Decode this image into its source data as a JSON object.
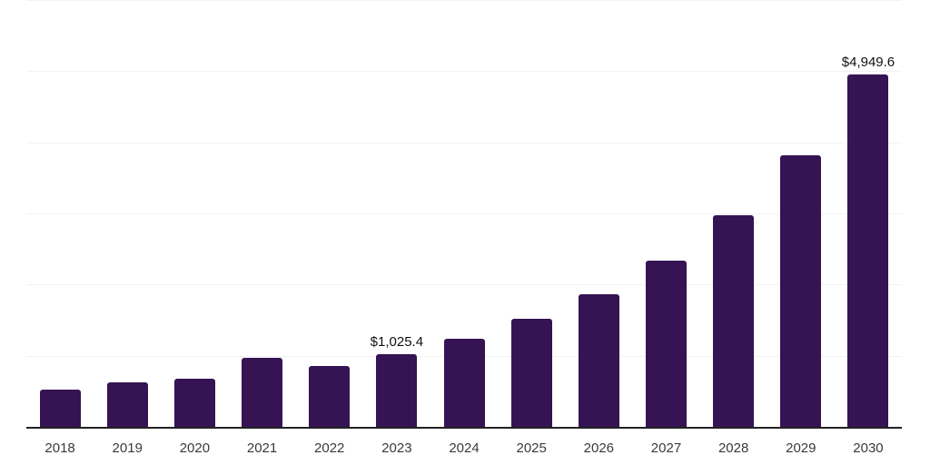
{
  "chart_data": {
    "type": "bar",
    "title": "",
    "xlabel": "",
    "ylabel": "",
    "categories": [
      "2018",
      "2019",
      "2020",
      "2021",
      "2022",
      "2023",
      "2024",
      "2025",
      "2026",
      "2027",
      "2028",
      "2029",
      "2030"
    ],
    "values": [
      530,
      625,
      675,
      965,
      850,
      1025.4,
      1235,
      1520,
      1860,
      2340,
      2970,
      3820,
      4949.6
    ],
    "data_labels": {
      "2023": "$1,025.4",
      "2030": "$4,949.6"
    },
    "ylim": [
      0,
      6000
    ],
    "gridline_step": 1000,
    "grid": "horizontal",
    "legend": "none"
  },
  "colors": {
    "bar": "#361353",
    "axis": "#222222",
    "gridline": "#f2f2f2",
    "tick_label": "#3a3a3a",
    "data_label": "#111111",
    "background": "#ffffff"
  }
}
